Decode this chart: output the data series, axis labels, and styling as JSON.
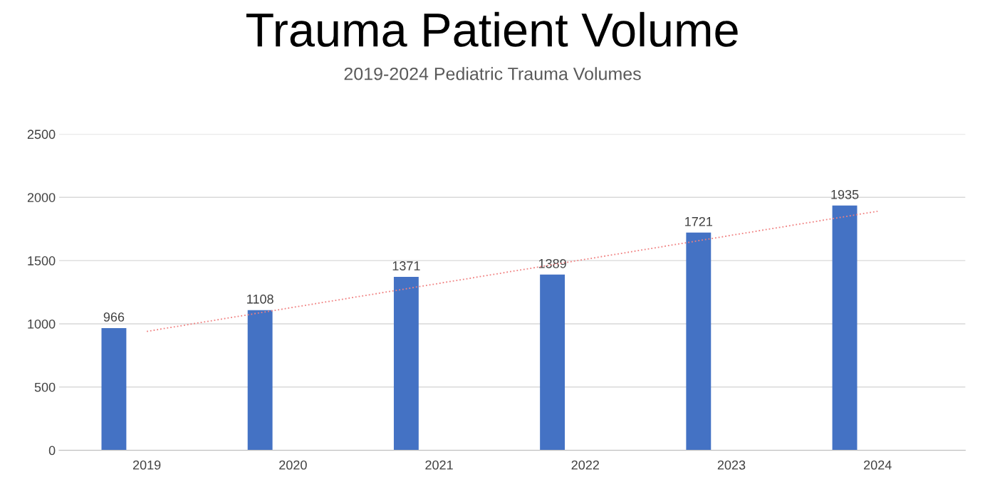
{
  "chart_data": {
    "type": "bar",
    "title": "Trauma Patient Volume",
    "subtitle": "2019-2024 Pediatric Trauma Volumes",
    "categories": [
      "2019",
      "2020",
      "2021",
      "2022",
      "2023",
      "2024"
    ],
    "series": [
      {
        "color": "#4472c4",
        "values": [
          966,
          1108,
          1371,
          1389,
          1721,
          1935
        ],
        "value_labels": [
          "966",
          "1108",
          "1371",
          "1389",
          "1721",
          "1935"
        ]
      },
      {
        "type": "line",
        "color": "#f08080",
        "line_style": "dotted",
        "values": [
          940,
          1130,
          1320,
          1510,
          1700,
          1890
        ]
      }
    ],
    "ylim": [
      0,
      2500
    ],
    "yticks": [
      0,
      500,
      1000,
      1500,
      2000,
      2500
    ],
    "grid": "y"
  }
}
